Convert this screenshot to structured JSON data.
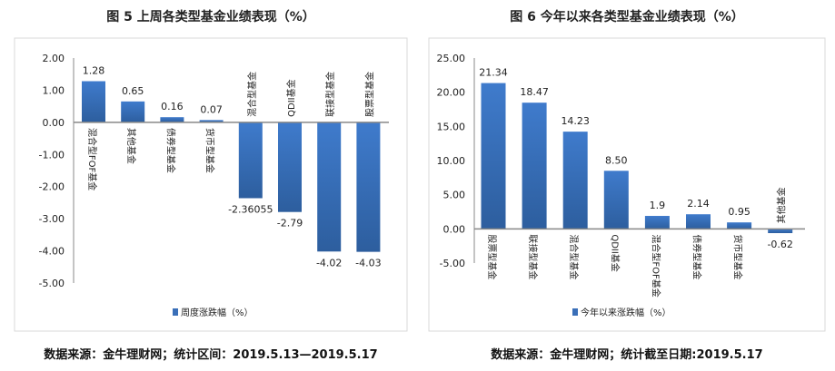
{
  "chart_data": [
    {
      "type": "bar",
      "title": "图 5 上周各类型基金业绩表现（%）",
      "categories": [
        "混合型FOF基金",
        "其他基金",
        "债券型基金",
        "货币型基金",
        "混合型基金",
        "QDII基金",
        "联接型基金",
        "股票型基金"
      ],
      "values": [
        1.28,
        0.65,
        0.16,
        0.07,
        -2.36055,
        -2.79,
        -4.02,
        -4.03
      ],
      "data_labels": [
        "1.28",
        "0.65",
        "0.16",
        "0.07",
        "-2.36055",
        "-2.79",
        "-4.02",
        "-4.03"
      ],
      "yticks": [
        "2.00",
        "1.00",
        "0.00",
        "-1.00",
        "-2.00",
        "-3.00",
        "-4.00",
        "-5.00"
      ],
      "ylim": [
        -5,
        2
      ],
      "legend": "周度涨跌幅（%）",
      "legend_position": "bottom",
      "source": "数据来源：金牛理财网；统计区间：2019.5.13—2019.5.17",
      "color": "#3a6fb8"
    },
    {
      "type": "bar",
      "title": "图 6 今年以来各类型基金业绩表现（%）",
      "categories": [
        "股票型基金",
        "联接型基金",
        "混合型基金",
        "QDII基金",
        "混合型FOF基金",
        "债券型基金",
        "货币型基金",
        "其他基金"
      ],
      "values": [
        21.34,
        18.47,
        14.23,
        8.5,
        1.9,
        2.14,
        0.95,
        -0.62
      ],
      "data_labels": [
        "21.34",
        "18.47",
        "14.23",
        "8.50",
        "1.9",
        "2.14",
        "0.95",
        "-0.62"
      ],
      "yticks": [
        "25.00",
        "20.00",
        "15.00",
        "10.00",
        "5.00",
        "0.00",
        "-5.00"
      ],
      "ylim": [
        -5,
        25
      ],
      "legend": "今年以来涨跌幅（%）",
      "legend_position": "bottom",
      "source": "数据来源：金牛理财网；统计截至日期:2019.5.17",
      "color": "#3a6fb8"
    }
  ]
}
